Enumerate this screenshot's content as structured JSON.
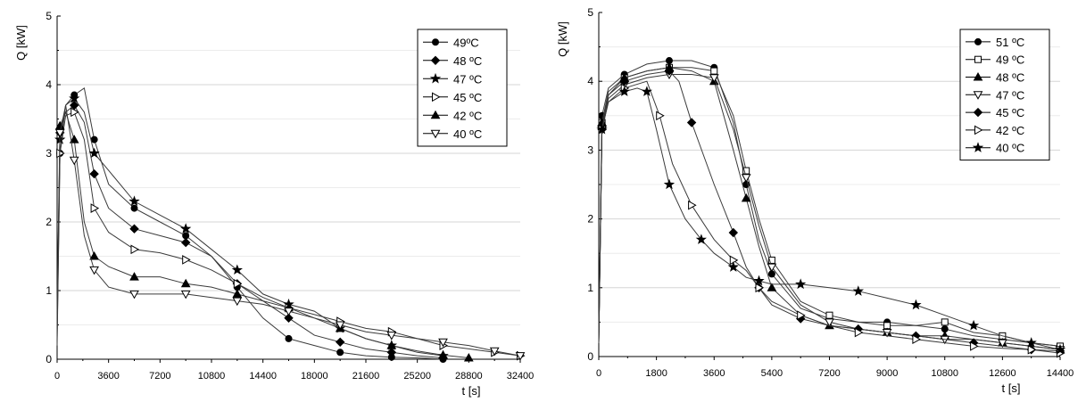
{
  "chart_data": [
    {
      "type": "line",
      "ylabel": "Q [kW]",
      "xlabel": "t [s]",
      "xlim": [
        0,
        32400
      ],
      "ylim": [
        0,
        5
      ],
      "xticks": [
        "0",
        "3600",
        "7200",
        "10800",
        "14400",
        "18000",
        "21600",
        "25200",
        "28800",
        "32400"
      ],
      "yticks": [
        "0",
        "1",
        "2",
        "3",
        "4",
        "5"
      ],
      "grid": "horizontal",
      "legend_position": "top-right",
      "series": [
        {
          "name": "49ºC",
          "marker": "circle",
          "x": [
            0,
            200,
            600,
            1200,
            1900,
            2600,
            3600,
            5400,
            7200,
            9000,
            10800,
            12600,
            14400,
            16200,
            18000,
            19800,
            21600,
            23400,
            25200,
            27000
          ],
          "y": [
            0.2,
            3.0,
            3.7,
            3.85,
            3.95,
            3.2,
            2.55,
            2.2,
            2.0,
            1.8,
            1.5,
            1.05,
            0.6,
            0.3,
            0.2,
            0.1,
            0.05,
            0.03,
            0.02,
            0.0
          ]
        },
        {
          "name": "48 ºC",
          "marker": "diamond",
          "x": [
            0,
            200,
            600,
            1200,
            1900,
            2600,
            3600,
            5400,
            7200,
            9000,
            10800,
            12600,
            14400,
            16200,
            18000,
            19800,
            21600,
            23400,
            25200,
            27000
          ],
          "y": [
            0.6,
            3.3,
            3.6,
            3.7,
            3.45,
            2.7,
            2.2,
            1.9,
            1.8,
            1.7,
            1.5,
            1.1,
            0.85,
            0.6,
            0.35,
            0.25,
            0.15,
            0.1,
            0.05,
            0.02
          ]
        },
        {
          "name": "47 ºC",
          "marker": "star",
          "x": [
            0,
            200,
            600,
            1200,
            1900,
            2600,
            3600,
            5400,
            7200,
            9000,
            10800,
            12600,
            14400,
            16200,
            18000,
            19800,
            21600,
            23400,
            25200,
            27000
          ],
          "y": [
            0.5,
            3.2,
            3.7,
            3.8,
            3.6,
            3.0,
            2.75,
            2.3,
            2.1,
            1.9,
            1.6,
            1.3,
            0.95,
            0.8,
            0.7,
            0.45,
            0.3,
            0.2,
            0.1,
            0.05
          ]
        },
        {
          "name": "45 ºC",
          "marker": "triangle-right-open",
          "x": [
            0,
            200,
            600,
            1200,
            1900,
            2600,
            3600,
            5400,
            7200,
            9000,
            10800,
            12600,
            14400,
            16200,
            18000,
            19800,
            21600,
            23400,
            25200,
            27000,
            28800,
            30600,
            32400
          ],
          "y": [
            0.3,
            3.0,
            3.55,
            3.6,
            3.2,
            2.2,
            1.85,
            1.6,
            1.55,
            1.45,
            1.3,
            1.1,
            0.9,
            0.75,
            0.65,
            0.55,
            0.45,
            0.4,
            0.3,
            0.2,
            0.15,
            0.1,
            0.05
          ]
        },
        {
          "name": "42 ºC",
          "marker": "triangle-up",
          "x": [
            0,
            200,
            600,
            1200,
            1900,
            2600,
            3600,
            5400,
            7200,
            9000,
            10800,
            12600,
            14400,
            16200,
            18000,
            19800,
            21600,
            23400,
            25200,
            27000,
            28800
          ],
          "y": [
            0.7,
            3.4,
            3.6,
            3.2,
            2.0,
            1.5,
            1.35,
            1.2,
            1.2,
            1.1,
            1.05,
            0.95,
            0.85,
            0.75,
            0.6,
            0.45,
            0.3,
            0.2,
            0.12,
            0.06,
            0.02
          ]
        },
        {
          "name": "40 ºC",
          "marker": "triangle-down-open",
          "x": [
            0,
            200,
            600,
            1200,
            1900,
            2600,
            3600,
            5400,
            7200,
            9000,
            10800,
            12600,
            14400,
            16200,
            18000,
            19800,
            21600,
            23400,
            25200,
            27000,
            28800,
            30600,
            32400
          ],
          "y": [
            0.4,
            3.3,
            3.7,
            2.9,
            1.8,
            1.3,
            1.05,
            0.95,
            0.95,
            0.95,
            0.9,
            0.85,
            0.8,
            0.7,
            0.6,
            0.5,
            0.4,
            0.35,
            0.3,
            0.25,
            0.2,
            0.12,
            0.05
          ]
        }
      ]
    },
    {
      "type": "line",
      "ylabel": "Q [kW]",
      "xlabel": "t [s]",
      "xlim": [
        0,
        14400
      ],
      "ylim": [
        0,
        5
      ],
      "xticks": [
        "0",
        "1800",
        "3600",
        "5400",
        "7200",
        "9000",
        "10800",
        "12600",
        "14400"
      ],
      "yticks": [
        "0",
        "1",
        "2",
        "3",
        "4",
        "5"
      ],
      "grid": "horizontal",
      "legend_position": "top-right",
      "series": [
        {
          "name": "51 ºC",
          "marker": "circle",
          "x": [
            0,
            100,
            300,
            800,
            1500,
            2200,
            2900,
            3600,
            4200,
            4600,
            5000,
            5400,
            6300,
            7200,
            8100,
            9000,
            9900,
            10800,
            11700,
            12600,
            13500,
            14400
          ],
          "y": [
            0.3,
            3.5,
            3.9,
            4.1,
            4.25,
            4.3,
            4.3,
            4.2,
            3.4,
            2.5,
            1.7,
            1.2,
            0.7,
            0.55,
            0.5,
            0.5,
            0.45,
            0.4,
            0.3,
            0.25,
            0.2,
            0.15
          ]
        },
        {
          "name": "49 ºC",
          "marker": "square-open",
          "x": [
            0,
            100,
            300,
            800,
            1500,
            2200,
            2900,
            3600,
            4200,
            4600,
            5000,
            5400,
            6300,
            7200,
            8100,
            9000,
            9900,
            10800,
            11700,
            12600,
            13500,
            14400
          ],
          "y": [
            0.2,
            3.4,
            3.8,
            4.05,
            4.15,
            4.2,
            4.2,
            4.15,
            3.5,
            2.7,
            2.0,
            1.4,
            0.8,
            0.6,
            0.5,
            0.45,
            0.45,
            0.5,
            0.35,
            0.3,
            0.2,
            0.15
          ]
        },
        {
          "name": "48 ºC",
          "marker": "triangle-up",
          "x": [
            0,
            100,
            300,
            800,
            1500,
            2200,
            2900,
            3600,
            4200,
            4600,
            5000,
            5400,
            6300,
            7200,
            8100,
            9000,
            9900,
            10800,
            11700,
            12600,
            13500,
            14400
          ],
          "y": [
            0.25,
            3.4,
            3.85,
            4.05,
            4.15,
            4.2,
            4.15,
            4.0,
            3.0,
            2.3,
            1.6,
            1.0,
            0.6,
            0.45,
            0.4,
            0.35,
            0.3,
            0.3,
            0.25,
            0.2,
            0.15,
            0.1
          ]
        },
        {
          "name": "47 ºC",
          "marker": "triangle-down-open",
          "x": [
            0,
            100,
            300,
            800,
            1500,
            2200,
            2900,
            3600,
            4200,
            4600,
            5000,
            5400,
            6300,
            7200,
            8100,
            9000,
            9900,
            10800,
            11700,
            12600,
            13500,
            14400
          ],
          "y": [
            0.2,
            3.3,
            3.75,
            3.95,
            4.05,
            4.1,
            4.1,
            4.05,
            3.3,
            2.6,
            1.9,
            1.3,
            0.75,
            0.5,
            0.4,
            0.35,
            0.3,
            0.25,
            0.25,
            0.2,
            0.15,
            0.1
          ]
        },
        {
          "name": "45 ºC",
          "marker": "diamond",
          "x": [
            0,
            100,
            300,
            800,
            1500,
            2200,
            2500,
            2900,
            3600,
            4200,
            4600,
            5000,
            5400,
            6300,
            7200,
            8100,
            9000,
            9900,
            10800,
            11700,
            12600,
            13500,
            14400
          ],
          "y": [
            0.2,
            3.3,
            3.8,
            4.0,
            4.1,
            4.15,
            4.0,
            3.4,
            2.5,
            1.8,
            1.3,
            1.0,
            0.75,
            0.55,
            0.45,
            0.4,
            0.35,
            0.3,
            0.25,
            0.2,
            0.15,
            0.1,
            0.08
          ]
        },
        {
          "name": "42 ºC",
          "marker": "triangle-right-open",
          "x": [
            0,
            100,
            300,
            800,
            1500,
            1900,
            2300,
            2900,
            3600,
            4200,
            4600,
            5000,
            5400,
            6300,
            7200,
            8100,
            9000,
            9900,
            10800,
            11700,
            12600,
            13500,
            14400
          ],
          "y": [
            0.2,
            3.3,
            3.7,
            3.9,
            4.0,
            3.5,
            2.8,
            2.2,
            1.7,
            1.4,
            1.25,
            1.0,
            0.8,
            0.6,
            0.45,
            0.35,
            0.3,
            0.25,
            0.2,
            0.15,
            0.12,
            0.1,
            0.05
          ]
        },
        {
          "name": "40 ºC",
          "marker": "star",
          "x": [
            0,
            100,
            300,
            800,
            1200,
            1500,
            1800,
            2200,
            2700,
            3200,
            3600,
            4200,
            4600,
            5000,
            5400,
            6300,
            7200,
            8100,
            9000,
            9900,
            10800,
            11700,
            12600,
            13500,
            14400
          ],
          "y": [
            0.2,
            3.3,
            3.7,
            3.85,
            3.9,
            3.85,
            3.3,
            2.5,
            2.0,
            1.7,
            1.5,
            1.3,
            1.15,
            1.1,
            1.05,
            1.05,
            1.0,
            0.95,
            0.85,
            0.75,
            0.6,
            0.45,
            0.3,
            0.2,
            0.1
          ]
        }
      ]
    }
  ]
}
